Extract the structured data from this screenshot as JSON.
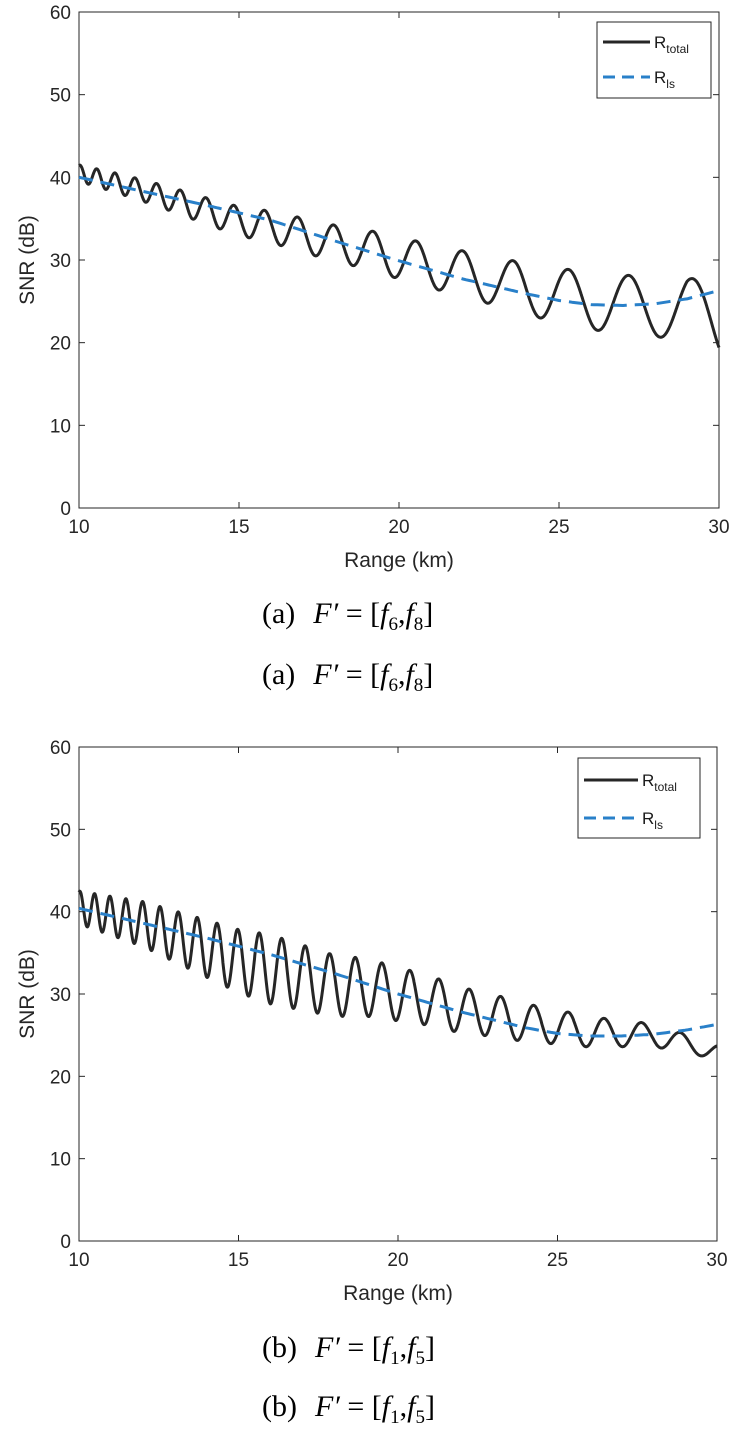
{
  "chart_data": [
    {
      "type": "line",
      "xlabel": "Range (km)",
      "ylabel": "SNR (dB)",
      "xlim": [
        10,
        30
      ],
      "ylim": [
        0,
        60
      ],
      "xticks": [
        "10",
        "15",
        "20",
        "25",
        "30"
      ],
      "yticks": [
        "0",
        "10",
        "20",
        "30",
        "40",
        "50",
        "60"
      ],
      "grid": false,
      "legend_position": "top-right",
      "legend": [
        {
          "main": "R",
          "sub": "total"
        },
        {
          "main": "R",
          "sub": "ls"
        }
      ],
      "series": [
        {
          "name": "R_total",
          "color": "#262626",
          "style": "solid",
          "oscillation_amplitude_db": [
            1.0,
            4.0
          ],
          "oscillation_period_km": [
            0.5,
            2.2
          ],
          "x": [
            10,
            11,
            12,
            13,
            14,
            15,
            16,
            17,
            18,
            19,
            20,
            21,
            22,
            23,
            24,
            25,
            26,
            27,
            28,
            29,
            30
          ],
          "y": [
            40.5,
            39.5,
            38.4,
            37.2,
            35.9,
            34.7,
            34.0,
            33.0,
            32.0,
            31.3,
            30.2,
            29.3,
            28.3,
            27.5,
            26.4,
            25.8,
            25.0,
            24.6,
            24.4,
            24.3,
            22.0
          ]
        },
        {
          "name": "R_ls",
          "color": "#2980c9",
          "style": "dashed",
          "x": [
            10,
            12,
            14,
            16,
            18,
            20,
            22,
            24,
            25,
            26,
            27,
            28,
            29,
            30
          ],
          "y": [
            40.0,
            38.3,
            36.6,
            34.8,
            32.3,
            29.9,
            27.7,
            25.9,
            25.1,
            24.6,
            24.5,
            24.7,
            25.3,
            26.3
          ]
        }
      ]
    },
    {
      "type": "line",
      "xlabel": "Range (km)",
      "ylabel": "SNR (dB)",
      "xlim": [
        10,
        30
      ],
      "ylim": [
        0,
        60
      ],
      "xticks": [
        "10",
        "15",
        "20",
        "25",
        "30"
      ],
      "yticks": [
        "0",
        "10",
        "20",
        "30",
        "40",
        "50",
        "60"
      ],
      "grid": false,
      "legend_position": "top-right",
      "legend": [
        {
          "main": "R",
          "sub": "total"
        },
        {
          "main": "R",
          "sub": "ls"
        }
      ],
      "series": [
        {
          "name": "R_total",
          "color": "#262626",
          "style": "solid",
          "oscillation_amplitude_db": [
            2.0,
            4.2,
            0.9
          ],
          "oscillation_period_km": [
            0.45,
            1.3
          ],
          "x": [
            10,
            11,
            12,
            13,
            14,
            15,
            16,
            17,
            18,
            19,
            20,
            21,
            22,
            23,
            24,
            25,
            26,
            27,
            28,
            29,
            30
          ],
          "y": [
            40.5,
            39.5,
            38.5,
            37.0,
            35.5,
            34.0,
            33.0,
            32.0,
            31.0,
            30.8,
            30.0,
            29.2,
            28.0,
            27.4,
            26.5,
            26.0,
            25.4,
            25.2,
            25.0,
            24.0,
            23.0
          ]
        },
        {
          "name": "R_ls",
          "color": "#2980c9",
          "style": "dashed",
          "x": [
            10,
            12,
            14,
            16,
            18,
            20,
            22,
            24,
            25,
            26,
            27,
            28,
            29,
            30
          ],
          "y": [
            40.4,
            38.6,
            36.8,
            34.8,
            32.5,
            30.0,
            27.8,
            25.9,
            25.2,
            24.9,
            24.9,
            25.1,
            25.6,
            26.3
          ]
        }
      ]
    }
  ],
  "captions": [
    {
      "label": "(a)",
      "lhs": "F′",
      "eq": " = [",
      "f1": "f",
      "s1": "6",
      "mid": ",",
      "f2": "f",
      "s2": "8",
      "end": "]"
    },
    {
      "label": "(a)",
      "lhs": "F′",
      "eq": " = [",
      "f1": "f",
      "s1": "6",
      "mid": ",",
      "f2": "f",
      "s2": "8",
      "end": "]"
    },
    {
      "label": "(b)",
      "lhs": "F′",
      "eq": " = [",
      "f1": "f",
      "s1": "1",
      "mid": ",",
      "f2": "f",
      "s2": "5",
      "end": "]"
    },
    {
      "label": "(b)",
      "lhs": "F′",
      "eq": " = [",
      "f1": "f",
      "s1": "1",
      "mid": ",",
      "f2": "f",
      "s2": "5",
      "end": "]"
    }
  ]
}
